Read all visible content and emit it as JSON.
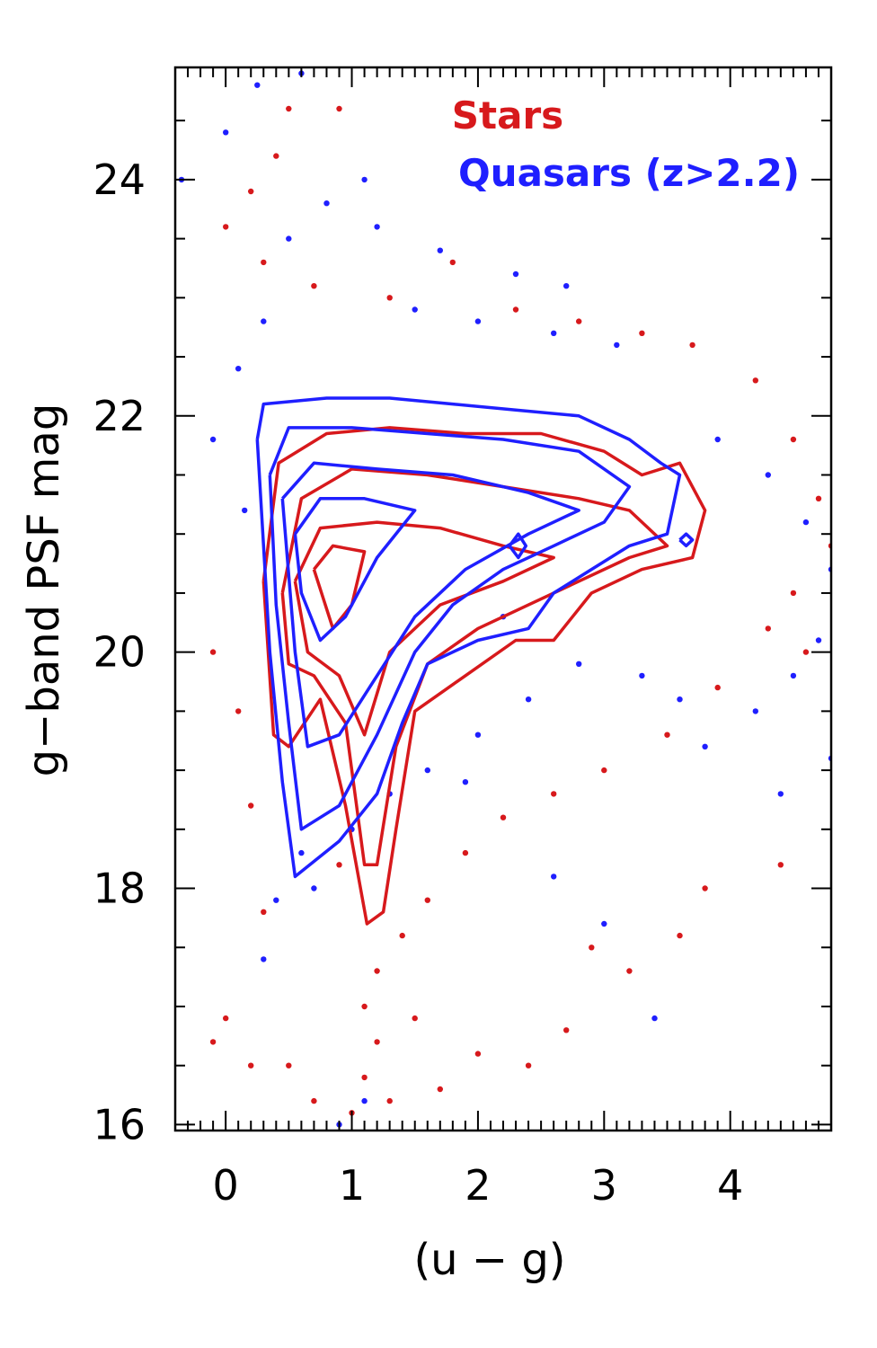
{
  "chart_data": {
    "type": "scatter",
    "xlabel": "(u − g)",
    "ylabel": "g−band PSF mag",
    "xlim": [
      -0.4,
      4.8
    ],
    "ylim": [
      15.95,
      24.95
    ],
    "x_ticks": [
      {
        "value": 0,
        "label": "0"
      },
      {
        "value": 1,
        "label": "1"
      },
      {
        "value": 2,
        "label": "2"
      },
      {
        "value": 3,
        "label": "3"
      },
      {
        "value": 4,
        "label": "4"
      }
    ],
    "y_ticks": [
      {
        "value": 16,
        "label": "16"
      },
      {
        "value": 18,
        "label": "18"
      },
      {
        "value": 20,
        "label": "20"
      },
      {
        "value": 22,
        "label": "22"
      },
      {
        "value": 24,
        "label": "24"
      }
    ],
    "grid": false,
    "legend_position": "top-right",
    "series": [
      {
        "name": "Stars",
        "color": "#d7191c",
        "contours": [
          [
            [
              0.3,
              20.6
            ],
            [
              0.42,
              21.6
            ],
            [
              0.8,
              21.85
            ],
            [
              1.3,
              21.9
            ],
            [
              1.9,
              21.85
            ],
            [
              2.5,
              21.85
            ],
            [
              3.0,
              21.7
            ],
            [
              3.3,
              21.5
            ],
            [
              3.6,
              21.6
            ],
            [
              3.8,
              21.2
            ],
            [
              3.7,
              20.8
            ],
            [
              3.3,
              20.7
            ],
            [
              2.9,
              20.5
            ],
            [
              2.6,
              20.1
            ],
            [
              2.3,
              20.1
            ],
            [
              1.9,
              19.8
            ],
            [
              1.5,
              19.5
            ],
            [
              1.35,
              18.5
            ],
            [
              1.25,
              17.8
            ],
            [
              1.12,
              17.7
            ],
            [
              0.95,
              18.7
            ],
            [
              0.75,
              19.6
            ],
            [
              0.5,
              19.2
            ],
            [
              0.38,
              19.3
            ],
            [
              0.3,
              20.6
            ]
          ],
          [
            [
              0.45,
              20.5
            ],
            [
              0.6,
              21.3
            ],
            [
              1.0,
              21.55
            ],
            [
              1.6,
              21.5
            ],
            [
              2.2,
              21.4
            ],
            [
              2.8,
              21.3
            ],
            [
              3.2,
              21.2
            ],
            [
              3.5,
              20.9
            ],
            [
              3.2,
              20.8
            ],
            [
              2.8,
              20.6
            ],
            [
              2.4,
              20.4
            ],
            [
              2.0,
              20.2
            ],
            [
              1.6,
              19.9
            ],
            [
              1.35,
              19.2
            ],
            [
              1.2,
              18.2
            ],
            [
              1.1,
              18.2
            ],
            [
              0.95,
              19.4
            ],
            [
              0.7,
              19.8
            ],
            [
              0.5,
              19.9
            ],
            [
              0.45,
              20.5
            ]
          ],
          [
            [
              0.55,
              20.6
            ],
            [
              0.75,
              21.05
            ],
            [
              1.2,
              21.1
            ],
            [
              1.7,
              21.05
            ],
            [
              2.2,
              20.9
            ],
            [
              2.6,
              20.8
            ],
            [
              2.2,
              20.6
            ],
            [
              1.7,
              20.4
            ],
            [
              1.3,
              20.0
            ],
            [
              1.1,
              19.3
            ],
            [
              0.9,
              19.8
            ],
            [
              0.65,
              20.0
            ],
            [
              0.55,
              20.6
            ]
          ],
          [
            [
              0.7,
              20.7
            ],
            [
              0.85,
              20.9
            ],
            [
              1.1,
              20.85
            ],
            [
              1.0,
              20.4
            ],
            [
              0.85,
              20.2
            ],
            [
              0.7,
              20.7
            ]
          ]
        ],
        "points_sample": [
          [
            0.0,
            25.0
          ],
          [
            0.5,
            24.6
          ],
          [
            0.9,
            24.6
          ],
          [
            0.4,
            24.2
          ],
          [
            0.2,
            23.9
          ],
          [
            0.0,
            23.6
          ],
          [
            0.3,
            23.3
          ],
          [
            0.7,
            23.1
          ],
          [
            1.3,
            23.0
          ],
          [
            1.8,
            23.3
          ],
          [
            2.3,
            22.9
          ],
          [
            2.8,
            22.8
          ],
          [
            3.3,
            22.7
          ],
          [
            3.7,
            22.6
          ],
          [
            4.2,
            22.3
          ],
          [
            4.5,
            21.8
          ],
          [
            4.7,
            21.3
          ],
          [
            4.8,
            20.9
          ],
          [
            4.5,
            20.5
          ],
          [
            4.3,
            20.2
          ],
          [
            4.6,
            20.0
          ],
          [
            3.9,
            19.7
          ],
          [
            3.5,
            19.3
          ],
          [
            3.0,
            19.0
          ],
          [
            2.6,
            18.8
          ],
          [
            2.2,
            18.6
          ],
          [
            1.9,
            18.3
          ],
          [
            1.6,
            17.9
          ],
          [
            1.4,
            17.6
          ],
          [
            1.2,
            17.3
          ],
          [
            1.1,
            17.0
          ],
          [
            1.2,
            16.7
          ],
          [
            1.1,
            16.4
          ],
          [
            1.3,
            16.2
          ],
          [
            1.0,
            16.1
          ],
          [
            1.7,
            16.3
          ],
          [
            2.0,
            16.6
          ],
          [
            2.7,
            16.8
          ],
          [
            3.2,
            17.3
          ],
          [
            3.8,
            18.0
          ],
          [
            4.4,
            18.2
          ],
          [
            0.0,
            16.9
          ],
          [
            -0.1,
            16.7
          ],
          [
            0.2,
            16.5
          ],
          [
            -0.1,
            20.0
          ],
          [
            0.1,
            19.5
          ],
          [
            0.2,
            18.7
          ],
          [
            0.3,
            17.8
          ],
          [
            0.5,
            16.5
          ],
          [
            0.7,
            16.2
          ],
          [
            3.6,
            17.6
          ],
          [
            2.4,
            16.5
          ],
          [
            2.9,
            17.5
          ],
          [
            1.5,
            16.9
          ],
          [
            0.9,
            18.2
          ]
        ]
      },
      {
        "name": "Quasars (z>2.2)",
        "color": "#1f1fff",
        "contours": [
          [
            [
              0.25,
              21.8
            ],
            [
              0.3,
              22.1
            ],
            [
              0.8,
              22.15
            ],
            [
              1.3,
              22.15
            ],
            [
              1.8,
              22.1
            ],
            [
              2.3,
              22.05
            ],
            [
              2.8,
              22.0
            ],
            [
              3.2,
              21.8
            ],
            [
              3.45,
              21.6
            ],
            [
              3.6,
              21.5
            ],
            [
              3.5,
              21.0
            ],
            [
              3.2,
              20.9
            ],
            [
              2.9,
              20.7
            ],
            [
              2.6,
              20.5
            ],
            [
              2.4,
              20.2
            ],
            [
              2.0,
              20.1
            ],
            [
              1.6,
              19.9
            ],
            [
              1.4,
              19.4
            ],
            [
              1.2,
              18.8
            ],
            [
              0.9,
              18.4
            ],
            [
              0.55,
              18.1
            ],
            [
              0.45,
              18.9
            ],
            [
              0.35,
              20.0
            ],
            [
              0.25,
              21.8
            ]
          ],
          [
            [
              0.35,
              21.5
            ],
            [
              0.5,
              21.9
            ],
            [
              1.0,
              21.9
            ],
            [
              1.6,
              21.85
            ],
            [
              2.2,
              21.8
            ],
            [
              2.8,
              21.7
            ],
            [
              3.2,
              21.4
            ],
            [
              3.0,
              21.1
            ],
            [
              2.6,
              20.9
            ],
            [
              2.2,
              20.7
            ],
            [
              1.8,
              20.4
            ],
            [
              1.5,
              20.0
            ],
            [
              1.2,
              19.3
            ],
            [
              0.9,
              18.7
            ],
            [
              0.6,
              18.5
            ],
            [
              0.5,
              19.4
            ],
            [
              0.4,
              20.4
            ],
            [
              0.35,
              21.5
            ]
          ],
          [
            [
              0.45,
              21.3
            ],
            [
              0.7,
              21.6
            ],
            [
              1.2,
              21.55
            ],
            [
              1.8,
              21.5
            ],
            [
              2.4,
              21.35
            ],
            [
              2.8,
              21.2
            ],
            [
              2.4,
              21.0
            ],
            [
              1.9,
              20.7
            ],
            [
              1.5,
              20.3
            ],
            [
              1.2,
              19.8
            ],
            [
              0.9,
              19.3
            ],
            [
              0.65,
              19.2
            ],
            [
              0.55,
              20.0
            ],
            [
              0.45,
              21.3
            ]
          ],
          [
            [
              0.55,
              21.0
            ],
            [
              0.75,
              21.3
            ],
            [
              1.1,
              21.3
            ],
            [
              1.5,
              21.2
            ],
            [
              1.2,
              20.8
            ],
            [
              0.95,
              20.3
            ],
            [
              0.75,
              20.1
            ],
            [
              0.6,
              20.5
            ],
            [
              0.55,
              21.0
            ]
          ],
          [
            [
              2.25,
              20.9
            ],
            [
              2.32,
              21.0
            ],
            [
              2.38,
              20.9
            ],
            [
              2.32,
              20.8
            ],
            [
              2.25,
              20.9
            ]
          ],
          [
            [
              3.6,
              20.95
            ],
            [
              3.65,
              21.0
            ],
            [
              3.7,
              20.95
            ],
            [
              3.65,
              20.9
            ],
            [
              3.6,
              20.95
            ]
          ]
        ],
        "points_sample": [
          [
            -0.35,
            24.0
          ],
          [
            0.0,
            24.4
          ],
          [
            0.25,
            24.8
          ],
          [
            0.6,
            24.9
          ],
          [
            1.1,
            24.0
          ],
          [
            0.8,
            23.8
          ],
          [
            0.5,
            23.5
          ],
          [
            1.2,
            23.6
          ],
          [
            1.7,
            23.4
          ],
          [
            2.3,
            23.2
          ],
          [
            2.7,
            23.1
          ],
          [
            1.5,
            22.9
          ],
          [
            2.0,
            22.8
          ],
          [
            2.6,
            22.7
          ],
          [
            3.1,
            22.6
          ],
          [
            0.3,
            22.8
          ],
          [
            0.1,
            22.4
          ],
          [
            -0.1,
            21.8
          ],
          [
            0.15,
            21.2
          ],
          [
            3.9,
            21.8
          ],
          [
            4.3,
            21.5
          ],
          [
            4.6,
            21.1
          ],
          [
            4.8,
            20.7
          ],
          [
            4.7,
            20.1
          ],
          [
            4.5,
            19.8
          ],
          [
            4.2,
            19.5
          ],
          [
            3.8,
            19.2
          ],
          [
            3.3,
            19.8
          ],
          [
            2.8,
            19.9
          ],
          [
            2.4,
            19.6
          ],
          [
            2.0,
            19.3
          ],
          [
            1.6,
            19.0
          ],
          [
            1.3,
            18.8
          ],
          [
            1.0,
            18.5
          ],
          [
            0.6,
            18.3
          ],
          [
            0.4,
            17.9
          ],
          [
            0.3,
            17.4
          ],
          [
            2.6,
            18.1
          ],
          [
            3.0,
            17.7
          ],
          [
            3.4,
            16.9
          ],
          [
            4.4,
            18.8
          ],
          [
            4.8,
            19.1
          ],
          [
            0.9,
            16.0
          ],
          [
            1.1,
            16.2
          ],
          [
            0.7,
            18.0
          ],
          [
            2.2,
            20.3
          ],
          [
            3.6,
            19.6
          ],
          [
            1.9,
            18.9
          ]
        ]
      }
    ]
  }
}
